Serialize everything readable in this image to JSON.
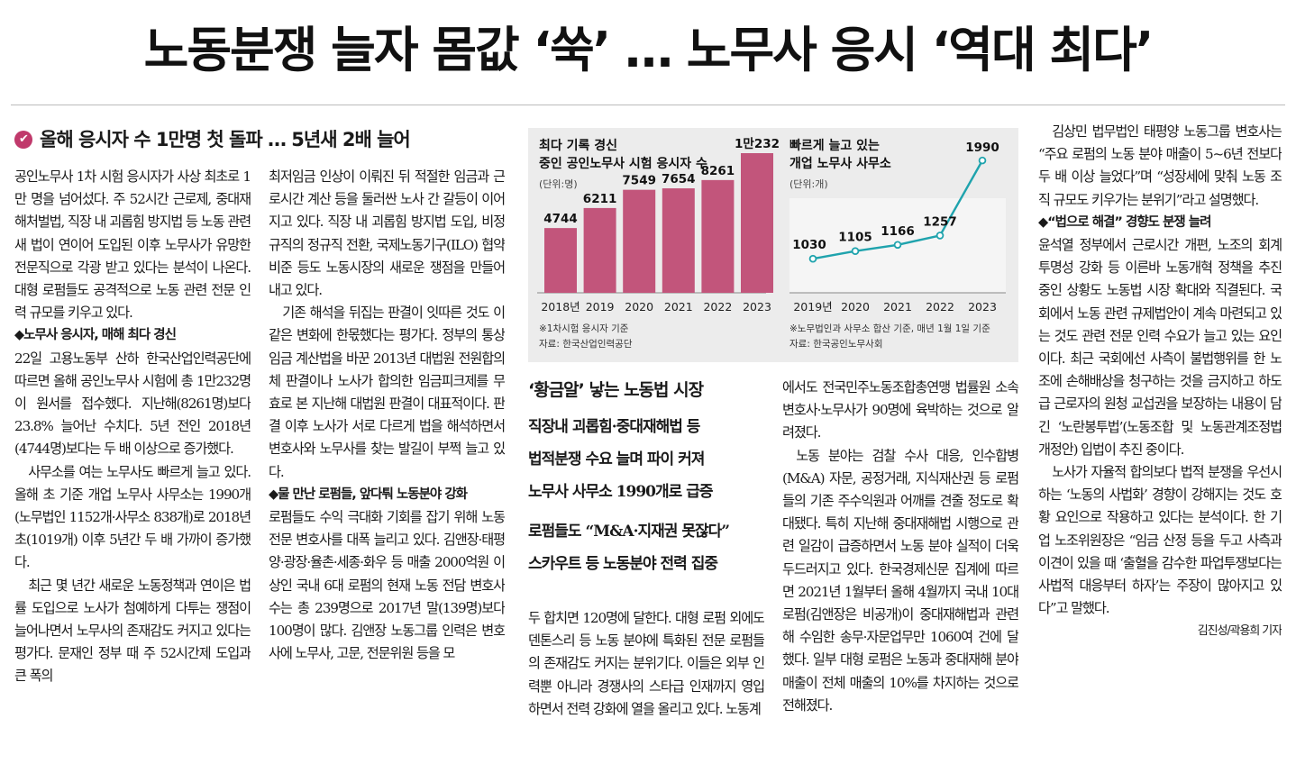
{
  "headline": "노동분쟁 늘자 몸값 ‘쑥’ … 노무사 응시 ‘역대 최다’",
  "kicker": "올해 응시자 수 1만명 첫 돌파 … 5년새 2배 늘어",
  "kicker_icon": "check-icon",
  "colors": {
    "bar": "#c2557b",
    "line": "#1fa3ad",
    "chart_bg": "#ececec"
  },
  "col1": [
    {
      "t": "공인노무사 1차 시험 응시자가 사상 최초로 1만 명을 넘어섰다. 주 52시간 근로제, 중대재해처벌법, 직장 내 괴롭힘 방지법 등 노동 관련 새 법이 연이어 도입된 이후 노무사가 유망한 전문직으로 각광 받고 있다는 분석이 나온다. 대형 로펌들도 공격적으로 노동 관련 전문 인력 규모를 키우고 있다.",
      "k": "body"
    },
    {
      "t": "◆노무사 응시자, 매해 최다 경신",
      "k": "sub"
    },
    {
      "t": "22일 고용노동부 산하 한국산업인력공단에 따르면 올해 공인노무사 시험에 총 1만232명이 원서를 접수했다. 지난해(8261명)보다 23.8% 늘어난 수치다. 5년 전인 2018년(4744명)보다는 두 배 이상으로 증가했다.",
      "k": "body"
    },
    {
      "t": "사무소를 여는 노무사도 빠르게 늘고 있다. 올해 초 기준 개업 노무사 사무소는 1990개(노무법인 1152개·사무소 838개)로 2018년 초(1019개) 이후 5년간 두 배 가까이 증가했다.",
      "k": "ind"
    },
    {
      "t": "최근 몇 년간 새로운 노동정책과 연이은 법률 도입으로 노사가 첨예하게 다투는 쟁점이 늘어나면서 노무사의 존재감도 커지고 있다는 평가다. 문재인 정부 때 주 52시간제 도입과 큰 폭의",
      "k": "ind"
    }
  ],
  "col2": [
    {
      "t": "최저임금 인상이 이뤄진 뒤 적절한 임금과 근로시간 계산 등을 둘러싼 노사 간 갈등이 이어지고 있다. 직장 내 괴롭힘 방지법 도입, 비정규직의 정규직 전환, 국제노동기구(ILO) 협약 비준 등도 노동시장의 새로운 쟁점을 만들어내고 있다.",
      "k": "body"
    },
    {
      "t": "기존 해석을 뒤집는 판결이 잇따른 것도 이 같은 변화에 한몫했다는 평가다. 정부의 통상임금 계산법을 바꾼 2013년 대법원 전원합의체 판결이나 노사가 합의한 임금피크제를 무효로 본 지난해 대법원 판결이 대표적이다. 판결 이후 노사가 서로 다르게 법을 해석하면서 변호사와 노무사를 찾는 발길이 부쩍 늘고 있다.",
      "k": "ind"
    },
    {
      "t": "◆물 만난 로펌들, 앞다퉈 노동분야 강화",
      "k": "sub"
    },
    {
      "t": "로펌들도 수익 극대화 기회를 잡기 위해 노동 전문 변호사를 대폭 늘리고 있다. 김앤장·태평양·광장·율촌·세종·화우 등 매출 2000억원 이상인 국내 6대 로펌의 현재 노동 전담 변호사 수는 총 239명으로 2017년 말(139명)보다 100명이 많다. 김앤장 노동그룹 인력은 변호사에 노무사, 고문, 전문위원 등을 모",
      "k": "body"
    }
  ],
  "chart_data": [
    {
      "type": "bar",
      "title": "최다 기록 경신 중인 공인노무사 시험 응시자 수",
      "unit": "(단위:명)",
      "categories": [
        "2018년",
        "2019",
        "2020",
        "2021",
        "2022",
        "2023"
      ],
      "values": [
        4744,
        6211,
        7549,
        7654,
        8261,
        10232
      ],
      "labels": [
        "4744",
        "6211",
        "7549",
        "7654",
        "8261",
        "1만232"
      ],
      "notes": [
        "※1차시험 응시자 기준",
        "자료: 한국산업인력공단"
      ]
    },
    {
      "type": "line",
      "title": "빠르게 늘고 있는 개업 노무사 사무소",
      "unit": "(단위:개)",
      "categories": [
        "2019년",
        "2020",
        "2021",
        "2022",
        "2023"
      ],
      "values": [
        1030,
        1105,
        1166,
        1257,
        1990
      ],
      "labels": [
        "1030",
        "1105",
        "1166",
        "1257",
        "1990"
      ],
      "notes": [
        "※노무법인과 사무소 합산 기준, 매년 1월 1일 기준",
        "자료: 한국공인노무사회"
      ]
    }
  ],
  "box": {
    "title": "‘황금알’ 낳는 노동법 시장",
    "deck1": [
      "직장내 괴롭힘·중대재해법 등",
      "법적분쟁 수요 늘며 파이 커져",
      "노무사 사무소 1990개로 급증"
    ],
    "deck2": [
      "로펌들도 “M&A·지재권 못잖다”",
      "스카우트 등 노동분야 전력 집중"
    ]
  },
  "col3": [
    {
      "t": "두 합치면 120명에 달한다. 대형 로펌 외에도 덴톤스리 등 노동 분야에 특화된 전문 로펌들의 존재감도 커지는 분위기다. 이들은 외부 인력뿐 아니라 경쟁사의 스타급 인재까지 영입하면서 전력 강화에 열을 올리고 있다. 노동계",
      "k": "body"
    }
  ],
  "col4": [
    {
      "t": "에서도 전국민주노동조합총연맹 법률원 소속 변호사·노무사가 90명에 육박하는 것으로 알려졌다.",
      "k": "body"
    },
    {
      "t": "노동 분야는 검찰 수사 대응, 인수합병(M&A) 자문, 공정거래, 지식재산권 등 로펌들의 기존 주수익원과 어깨를 견줄 정도로 확대됐다. 특히 지난해 중대재해법 시행으로 관련 일감이 급증하면서 노동 분야 실적이 더욱 두드러지고 있다. 한국경제신문 집계에 따르면 2021년 1월부터 올해 4월까지 국내 10대 로펌(김앤장은 비공개)이 중대재해법과 관련해 수임한 송무·자문업무만 1060여 건에 달했다. 일부 대형 로펌은 노동과 중대재해 분야 매출이 전체 매출의 10%를 차지하는 것으로 전해졌다.",
      "k": "ind"
    }
  ],
  "col5": [
    {
      "t": "김상민 법무법인 태평양 노동그룹 변호사는 “주요 로펌의 노동 분야 매출이 5~6년 전보다 두 배 이상 늘었다”며 “성장세에 맞춰 노동 조직 규모도 키우가는 분위기”라고 설명했다.",
      "k": "ind"
    },
    {
      "t": "◆“법으로 해결” 경향도 분쟁 늘려",
      "k": "sub"
    },
    {
      "t": "윤석열 정부에서 근로시간 개편, 노조의 회계 투명성 강화 등 이른바 노동개혁 정책을 추진 중인 상황도 노동법 시장 확대와 직결된다. 국회에서 노동 관련 규제법안이 계속 마련되고 있는 것도 관련 전문 인력 수요가 늘고 있는 요인이다. 최근 국회에선 사측이 불법행위를 한 노조에 손해배상을 청구하는 것을 금지하고 하도급 근로자의 원청 교섭권을 보장하는 내용이 담긴 ‘노란봉투법’(노동조합 및 노동관계조정법 개정안) 입법이 추진 중이다.",
      "k": "body"
    },
    {
      "t": "노사가 자율적 합의보다 법적 분쟁을 우선시하는 ‘노동의 사법화’ 경향이 강해지는 것도 호황 요인으로 작용하고 있다는 분석이다. 한 기업 노조위원장은 “임금 산정 등을 두고 사측과 이견이 있을 때 ‘출혈을 감수한 파업투쟁보다는 사법적 대응부터 하자’는 주장이 많아지고 있다”고 말했다.",
      "k": "ind"
    }
  ],
  "byline": "김진성/곽용희 기자"
}
